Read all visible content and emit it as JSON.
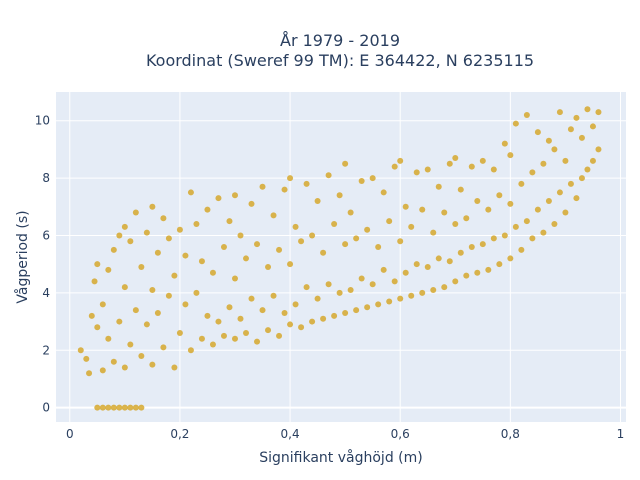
{
  "chart_data": {
    "type": "scatter",
    "title_line1": "År 1979 - 2019",
    "title_line2": "Koordinat (Sweref 99 TM): E 364422, N 6235115",
    "xlabel": "Signifikant våghöjd (m)",
    "ylabel": "Vågperiod (s)",
    "xlim": [
      -0.025,
      1.01
    ],
    "ylim": [
      -0.5,
      11.0
    ],
    "xticks": [
      0,
      0.2,
      0.4,
      0.6,
      0.8,
      1
    ],
    "xtick_labels": [
      "0",
      "0,2",
      "0,4",
      "0,6",
      "0,8",
      "1"
    ],
    "yticks": [
      0,
      2,
      4,
      6,
      8,
      10
    ],
    "ytick_labels": [
      "0",
      "2",
      "4",
      "6",
      "8",
      "10"
    ],
    "grid": true,
    "legend": "none",
    "plot_bg": "#e5ecf6",
    "marker_color": "#d4a420",
    "series": [
      {
        "values": [
          [
            0.02,
            2.0
          ],
          [
            0.03,
            1.7
          ],
          [
            0.035,
            1.2
          ],
          [
            0.04,
            3.2
          ],
          [
            0.045,
            4.4
          ],
          [
            0.05,
            2.8
          ],
          [
            0.05,
            5.0
          ],
          [
            0.06,
            1.3
          ],
          [
            0.06,
            3.6
          ],
          [
            0.07,
            2.4
          ],
          [
            0.07,
            4.8
          ],
          [
            0.08,
            1.6
          ],
          [
            0.08,
            5.5
          ],
          [
            0.09,
            3.0
          ],
          [
            0.09,
            6.0
          ],
          [
            0.1,
            1.4
          ],
          [
            0.1,
            4.2
          ],
          [
            0.1,
            6.3
          ],
          [
            0.11,
            2.2
          ],
          [
            0.11,
            5.8
          ],
          [
            0.12,
            3.4
          ],
          [
            0.12,
            6.8
          ],
          [
            0.13,
            1.8
          ],
          [
            0.13,
            4.9
          ],
          [
            0.14,
            2.9
          ],
          [
            0.14,
            6.1
          ],
          [
            0.15,
            1.5
          ],
          [
            0.15,
            4.1
          ],
          [
            0.15,
            7.0
          ],
          [
            0.16,
            3.3
          ],
          [
            0.16,
            5.4
          ],
          [
            0.17,
            2.1
          ],
          [
            0.17,
            6.6
          ],
          [
            0.18,
            3.9
          ],
          [
            0.18,
            5.9
          ],
          [
            0.19,
            1.4
          ],
          [
            0.19,
            4.6
          ],
          [
            0.2,
            2.6
          ],
          [
            0.2,
            6.2
          ],
          [
            0.21,
            3.6
          ],
          [
            0.21,
            5.3
          ],
          [
            0.22,
            2.0
          ],
          [
            0.22,
            7.5
          ],
          [
            0.23,
            4.0
          ],
          [
            0.23,
            6.4
          ],
          [
            0.24,
            2.4
          ],
          [
            0.24,
            5.1
          ],
          [
            0.25,
            3.2
          ],
          [
            0.25,
            6.9
          ],
          [
            0.26,
            2.2
          ],
          [
            0.26,
            4.7
          ],
          [
            0.27,
            3.0
          ],
          [
            0.27,
            7.3
          ],
          [
            0.28,
            2.5
          ],
          [
            0.28,
            5.6
          ],
          [
            0.29,
            3.5
          ],
          [
            0.29,
            6.5
          ],
          [
            0.3,
            2.4
          ],
          [
            0.3,
            4.5
          ],
          [
            0.3,
            7.4
          ],
          [
            0.31,
            3.1
          ],
          [
            0.31,
            6.0
          ],
          [
            0.32,
            2.6
          ],
          [
            0.32,
            5.2
          ],
          [
            0.33,
            3.8
          ],
          [
            0.33,
            7.1
          ],
          [
            0.34,
            2.3
          ],
          [
            0.34,
            5.7
          ],
          [
            0.35,
            3.4
          ],
          [
            0.35,
            7.7
          ],
          [
            0.36,
            2.7
          ],
          [
            0.36,
            4.9
          ],
          [
            0.37,
            3.9
          ],
          [
            0.37,
            6.7
          ],
          [
            0.38,
            2.5
          ],
          [
            0.38,
            5.5
          ],
          [
            0.39,
            3.3
          ],
          [
            0.39,
            7.6
          ],
          [
            0.4,
            2.9
          ],
          [
            0.4,
            5.0
          ],
          [
            0.4,
            8.0
          ],
          [
            0.41,
            3.6
          ],
          [
            0.41,
            6.3
          ],
          [
            0.42,
            2.8
          ],
          [
            0.42,
            5.8
          ],
          [
            0.43,
            4.2
          ],
          [
            0.43,
            7.8
          ],
          [
            0.44,
            3.0
          ],
          [
            0.44,
            6.0
          ],
          [
            0.45,
            3.8
          ],
          [
            0.45,
            7.2
          ],
          [
            0.46,
            3.1
          ],
          [
            0.46,
            5.4
          ],
          [
            0.47,
            4.3
          ],
          [
            0.47,
            8.1
          ],
          [
            0.48,
            3.2
          ],
          [
            0.48,
            6.4
          ],
          [
            0.49,
            4.0
          ],
          [
            0.49,
            7.4
          ],
          [
            0.5,
            3.3
          ],
          [
            0.5,
            5.7
          ],
          [
            0.5,
            8.5
          ],
          [
            0.51,
            4.1
          ],
          [
            0.51,
            6.8
          ],
          [
            0.52,
            3.4
          ],
          [
            0.52,
            5.9
          ],
          [
            0.53,
            4.5
          ],
          [
            0.53,
            7.9
          ],
          [
            0.54,
            3.5
          ],
          [
            0.54,
            6.2
          ],
          [
            0.55,
            4.3
          ],
          [
            0.55,
            8.0
          ],
          [
            0.56,
            3.6
          ],
          [
            0.56,
            5.6
          ],
          [
            0.57,
            4.8
          ],
          [
            0.57,
            7.5
          ],
          [
            0.58,
            3.7
          ],
          [
            0.58,
            6.5
          ],
          [
            0.59,
            4.4
          ],
          [
            0.59,
            8.4
          ],
          [
            0.6,
            3.8
          ],
          [
            0.6,
            5.8
          ],
          [
            0.6,
            8.6
          ],
          [
            0.61,
            4.7
          ],
          [
            0.61,
            7.0
          ],
          [
            0.62,
            3.9
          ],
          [
            0.62,
            6.3
          ],
          [
            0.63,
            5.0
          ],
          [
            0.63,
            8.2
          ],
          [
            0.64,
            4.0
          ],
          [
            0.64,
            6.9
          ],
          [
            0.65,
            4.9
          ],
          [
            0.65,
            8.3
          ],
          [
            0.66,
            4.1
          ],
          [
            0.66,
            6.1
          ],
          [
            0.67,
            5.2
          ],
          [
            0.67,
            7.7
          ],
          [
            0.68,
            4.2
          ],
          [
            0.68,
            6.8
          ],
          [
            0.69,
            5.1
          ],
          [
            0.69,
            8.5
          ],
          [
            0.7,
            4.4
          ],
          [
            0.7,
            6.4
          ],
          [
            0.7,
            8.7
          ],
          [
            0.71,
            5.4
          ],
          [
            0.71,
            7.6
          ],
          [
            0.72,
            4.6
          ],
          [
            0.72,
            6.6
          ],
          [
            0.73,
            5.6
          ],
          [
            0.73,
            8.4
          ],
          [
            0.74,
            4.7
          ],
          [
            0.74,
            7.2
          ],
          [
            0.75,
            5.7
          ],
          [
            0.75,
            8.6
          ],
          [
            0.76,
            4.8
          ],
          [
            0.76,
            6.9
          ],
          [
            0.77,
            5.9
          ],
          [
            0.77,
            8.3
          ],
          [
            0.78,
            5.0
          ],
          [
            0.78,
            7.4
          ],
          [
            0.79,
            6.0
          ],
          [
            0.79,
            9.2
          ],
          [
            0.8,
            5.2
          ],
          [
            0.8,
            7.1
          ],
          [
            0.8,
            8.8
          ],
          [
            0.81,
            6.3
          ],
          [
            0.81,
            9.9
          ],
          [
            0.82,
            5.5
          ],
          [
            0.82,
            7.8
          ],
          [
            0.83,
            6.5
          ],
          [
            0.83,
            10.2
          ],
          [
            0.84,
            5.9
          ],
          [
            0.84,
            8.2
          ],
          [
            0.85,
            6.9
          ],
          [
            0.85,
            9.6
          ],
          [
            0.86,
            6.1
          ],
          [
            0.86,
            8.5
          ],
          [
            0.87,
            7.2
          ],
          [
            0.87,
            9.3
          ],
          [
            0.88,
            6.4
          ],
          [
            0.88,
            9.0
          ],
          [
            0.89,
            7.5
          ],
          [
            0.89,
            10.3
          ],
          [
            0.9,
            6.8
          ],
          [
            0.9,
            8.6
          ],
          [
            0.91,
            7.8
          ],
          [
            0.91,
            9.7
          ],
          [
            0.92,
            7.3
          ],
          [
            0.92,
            10.1
          ],
          [
            0.93,
            8.0
          ],
          [
            0.93,
            9.4
          ],
          [
            0.94,
            8.3
          ],
          [
            0.94,
            10.4
          ],
          [
            0.95,
            8.6
          ],
          [
            0.95,
            9.8
          ],
          [
            0.96,
            9.0
          ],
          [
            0.96,
            10.3
          ],
          [
            0.05,
            0.0
          ],
          [
            0.06,
            0.0
          ],
          [
            0.07,
            0.0
          ],
          [
            0.08,
            0.0
          ],
          [
            0.09,
            0.0
          ],
          [
            0.1,
            0.0
          ],
          [
            0.11,
            0.0
          ],
          [
            0.12,
            0.0
          ],
          [
            0.13,
            0.0
          ]
        ]
      }
    ]
  }
}
